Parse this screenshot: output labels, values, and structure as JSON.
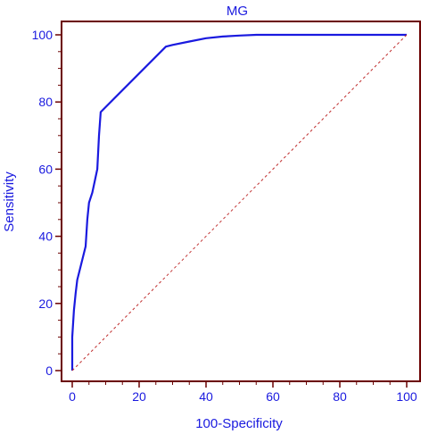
{
  "chart_data": {
    "type": "line",
    "title": "MG",
    "xlabel": "100-Specificity",
    "ylabel": "Sensitivity",
    "xlim": [
      0,
      100
    ],
    "ylim": [
      0,
      100
    ],
    "x_ticks": [
      0,
      20,
      40,
      60,
      80,
      100
    ],
    "y_ticks": [
      0,
      20,
      40,
      60,
      80,
      100
    ],
    "grid": false,
    "series": [
      {
        "style": "solid",
        "color": "#1a1adf",
        "x": [
          0,
          0,
          0.5,
          1,
          1.5,
          2.5,
          4,
          4.5,
          5,
          6,
          7.5,
          8,
          8.5,
          28,
          30,
          35,
          40,
          45,
          50,
          55,
          100
        ],
        "y": [
          0,
          10,
          18,
          23,
          27,
          31,
          37,
          45,
          50,
          53,
          60,
          70,
          77,
          96.5,
          97,
          98,
          99,
          99.5,
          99.8,
          100,
          100
        ]
      },
      {
        "style": "dashed",
        "color": "#c03030",
        "x": [
          0,
          100
        ],
        "y": [
          0,
          100
        ]
      }
    ],
    "colors": {
      "frame": "#6b0000",
      "text": "#1a1adf"
    }
  }
}
